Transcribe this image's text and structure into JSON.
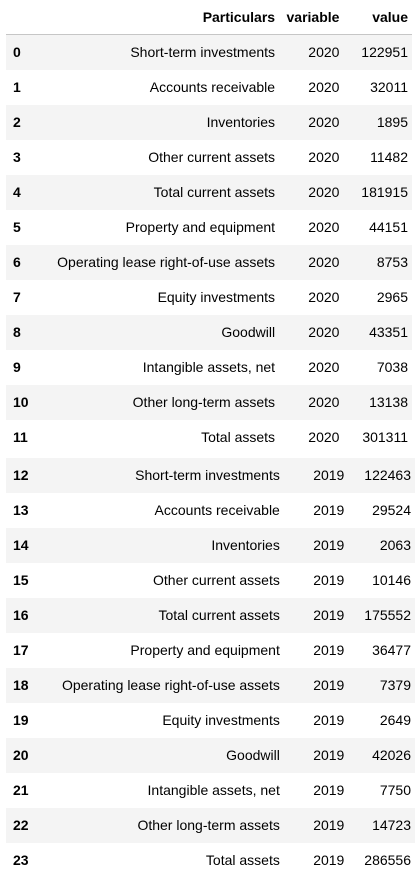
{
  "header": {
    "index": "",
    "particulars": "Particulars",
    "variable": "variable",
    "value": "value"
  },
  "rows_a": [
    {
      "idx": "0",
      "particulars": "Short-term investments",
      "variable": "2020",
      "value": "122951"
    },
    {
      "idx": "1",
      "particulars": "Accounts receivable",
      "variable": "2020",
      "value": "32011"
    },
    {
      "idx": "2",
      "particulars": "Inventories",
      "variable": "2020",
      "value": "1895"
    },
    {
      "idx": "3",
      "particulars": "Other current assets",
      "variable": "2020",
      "value": "11482"
    },
    {
      "idx": "4",
      "particulars": "Total current assets",
      "variable": "2020",
      "value": "181915"
    },
    {
      "idx": "5",
      "particulars": "Property and equipment",
      "variable": "2020",
      "value": "44151"
    },
    {
      "idx": "6",
      "particulars": "Operating lease right-of-use assets",
      "variable": "2020",
      "value": "8753"
    },
    {
      "idx": "7",
      "particulars": "Equity investments",
      "variable": "2020",
      "value": "2965"
    },
    {
      "idx": "8",
      "particulars": "Goodwill",
      "variable": "2020",
      "value": "43351"
    },
    {
      "idx": "9",
      "particulars": "Intangible assets, net",
      "variable": "2020",
      "value": "7038"
    },
    {
      "idx": "10",
      "particulars": "Other long-term assets",
      "variable": "2020",
      "value": "13138"
    },
    {
      "idx": "11",
      "particulars": "Total assets",
      "variable": "2020",
      "value": "301311"
    }
  ],
  "rows_b": [
    {
      "idx": "12",
      "particulars": "Short-term investments",
      "variable": "2019",
      "value": "122463"
    },
    {
      "idx": "13",
      "particulars": "Accounts receivable",
      "variable": "2019",
      "value": "29524"
    },
    {
      "idx": "14",
      "particulars": "Inventories",
      "variable": "2019",
      "value": "2063"
    },
    {
      "idx": "15",
      "particulars": "Other current assets",
      "variable": "2019",
      "value": "10146"
    },
    {
      "idx": "16",
      "particulars": "Total current assets",
      "variable": "2019",
      "value": "175552"
    },
    {
      "idx": "17",
      "particulars": "Property and equipment",
      "variable": "2019",
      "value": "36477"
    },
    {
      "idx": "18",
      "particulars": "Operating lease right-of-use assets",
      "variable": "2019",
      "value": "7379"
    },
    {
      "idx": "19",
      "particulars": "Equity investments",
      "variable": "2019",
      "value": "2649"
    },
    {
      "idx": "20",
      "particulars": "Goodwill",
      "variable": "2019",
      "value": "42026"
    },
    {
      "idx": "21",
      "particulars": "Intangible assets, net",
      "variable": "2019",
      "value": "7750"
    },
    {
      "idx": "22",
      "particulars": "Other long-term assets",
      "variable": "2019",
      "value": "14723"
    },
    {
      "idx": "23",
      "particulars": "Total assets",
      "variable": "2019",
      "value": "286556"
    }
  ]
}
